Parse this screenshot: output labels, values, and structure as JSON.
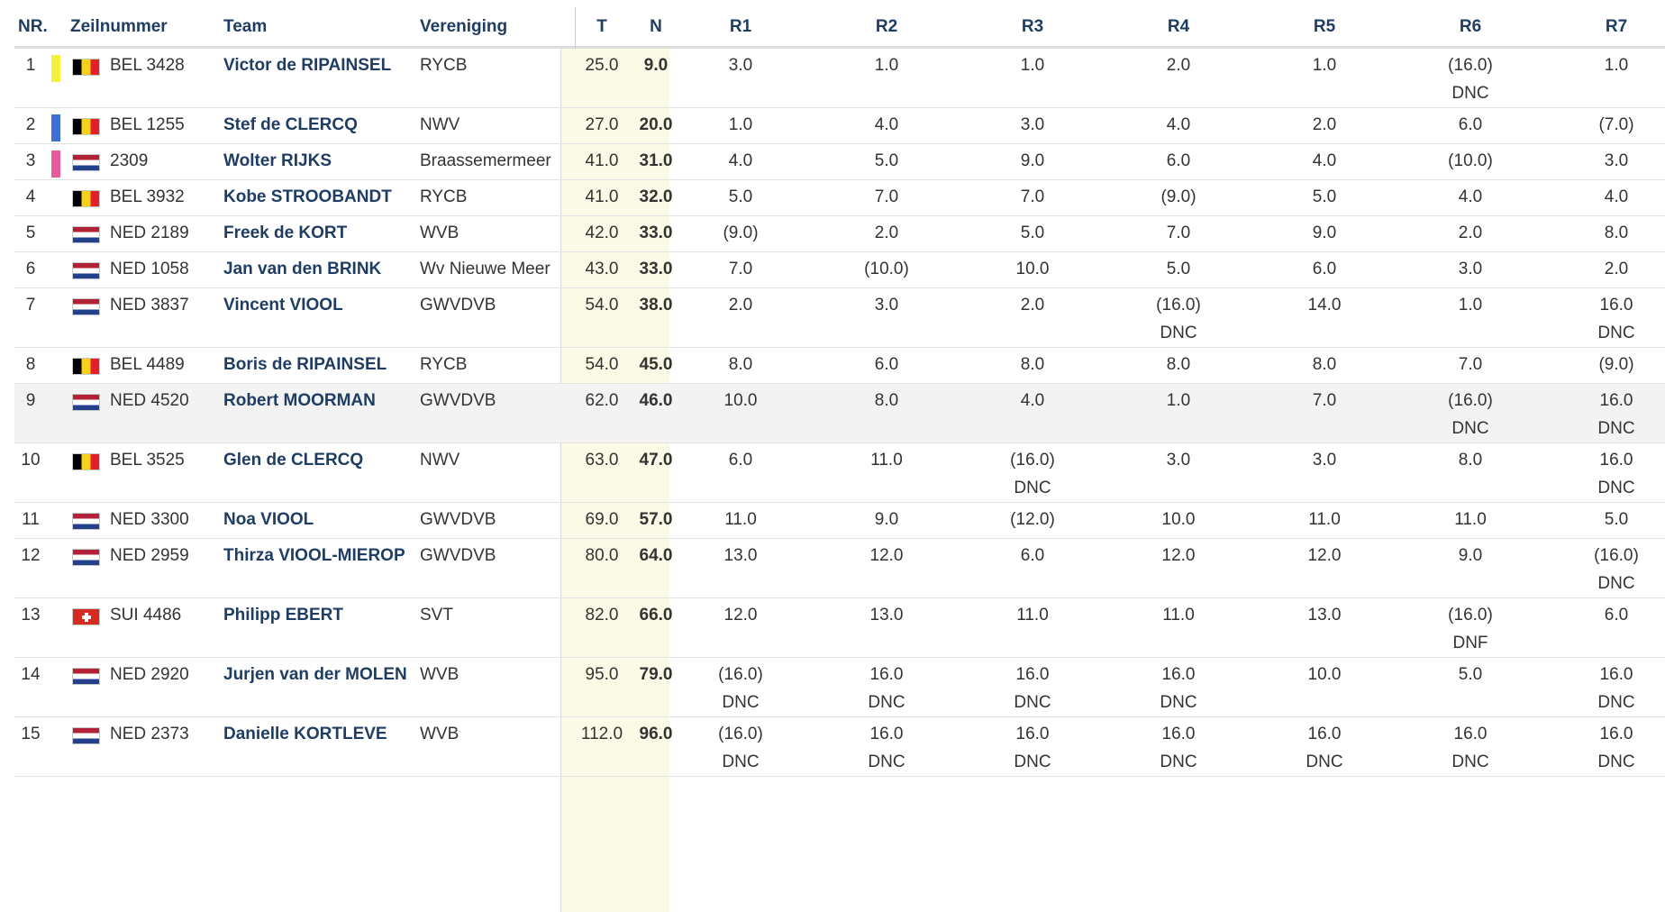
{
  "colors": {
    "header_text": "#1f3d63",
    "team_link": "#1f3d63",
    "tn_band": "#fafae6",
    "highlight_row": "#f3f3f3",
    "marker_yellow": "#f5f03a",
    "marker_blue": "#3f6fd6",
    "marker_pink": "#e95a9c"
  },
  "headers": {
    "nr": "NR.",
    "sail": "Zeilnummer",
    "team": "Team",
    "club": "Vereniging",
    "t": "T",
    "n": "N",
    "races": [
      "R1",
      "R2",
      "R3",
      "R4",
      "R5",
      "R6",
      "R7"
    ]
  },
  "rows": [
    {
      "nr": "1",
      "marker": "yellow",
      "flag": "bel",
      "sail": "BEL 3428",
      "team": "Victor de RIPAINSEL",
      "club": "RYCB",
      "t": "25.0",
      "n": "9.0",
      "races": [
        {
          "score": "3.0",
          "code": ""
        },
        {
          "score": "1.0",
          "code": ""
        },
        {
          "score": "1.0",
          "code": ""
        },
        {
          "score": "2.0",
          "code": ""
        },
        {
          "score": "1.0",
          "code": ""
        },
        {
          "score": "(16.0)",
          "code": "DNC"
        },
        {
          "score": "1.0",
          "code": ""
        }
      ]
    },
    {
      "nr": "2",
      "marker": "blue",
      "flag": "bel",
      "sail": "BEL 1255",
      "team": "Stef de CLERCQ",
      "club": "NWV",
      "t": "27.0",
      "n": "20.0",
      "races": [
        {
          "score": "1.0",
          "code": ""
        },
        {
          "score": "4.0",
          "code": ""
        },
        {
          "score": "3.0",
          "code": ""
        },
        {
          "score": "4.0",
          "code": ""
        },
        {
          "score": "2.0",
          "code": ""
        },
        {
          "score": "6.0",
          "code": ""
        },
        {
          "score": "(7.0)",
          "code": ""
        }
      ]
    },
    {
      "nr": "3",
      "marker": "pink",
      "flag": "ned",
      "sail": "2309",
      "team": "Wolter RIJKS",
      "club": "Braassemermeer",
      "t": "41.0",
      "n": "31.0",
      "races": [
        {
          "score": "4.0",
          "code": ""
        },
        {
          "score": "5.0",
          "code": ""
        },
        {
          "score": "9.0",
          "code": ""
        },
        {
          "score": "6.0",
          "code": ""
        },
        {
          "score": "4.0",
          "code": ""
        },
        {
          "score": "(10.0)",
          "code": ""
        },
        {
          "score": "3.0",
          "code": ""
        }
      ]
    },
    {
      "nr": "4",
      "marker": "",
      "flag": "bel",
      "sail": "BEL 3932",
      "team": "Kobe STROOBANDT",
      "club": "RYCB",
      "t": "41.0",
      "n": "32.0",
      "races": [
        {
          "score": "5.0",
          "code": ""
        },
        {
          "score": "7.0",
          "code": ""
        },
        {
          "score": "7.0",
          "code": ""
        },
        {
          "score": "(9.0)",
          "code": ""
        },
        {
          "score": "5.0",
          "code": ""
        },
        {
          "score": "4.0",
          "code": ""
        },
        {
          "score": "4.0",
          "code": ""
        }
      ]
    },
    {
      "nr": "5",
      "marker": "",
      "flag": "ned",
      "sail": "NED 2189",
      "team": "Freek de KORT",
      "club": "WVB",
      "t": "42.0",
      "n": "33.0",
      "races": [
        {
          "score": "(9.0)",
          "code": ""
        },
        {
          "score": "2.0",
          "code": ""
        },
        {
          "score": "5.0",
          "code": ""
        },
        {
          "score": "7.0",
          "code": ""
        },
        {
          "score": "9.0",
          "code": ""
        },
        {
          "score": "2.0",
          "code": ""
        },
        {
          "score": "8.0",
          "code": ""
        }
      ]
    },
    {
      "nr": "6",
      "marker": "",
      "flag": "ned",
      "sail": "NED 1058",
      "team": "Jan van den BRINK",
      "club": "Wv Nieuwe Meer",
      "t": "43.0",
      "n": "33.0",
      "races": [
        {
          "score": "7.0",
          "code": ""
        },
        {
          "score": "(10.0)",
          "code": ""
        },
        {
          "score": "10.0",
          "code": ""
        },
        {
          "score": "5.0",
          "code": ""
        },
        {
          "score": "6.0",
          "code": ""
        },
        {
          "score": "3.0",
          "code": ""
        },
        {
          "score": "2.0",
          "code": ""
        }
      ]
    },
    {
      "nr": "7",
      "marker": "",
      "flag": "ned",
      "sail": "NED 3837",
      "team": "Vincent VIOOL",
      "club": "GWVDVB",
      "t": "54.0",
      "n": "38.0",
      "races": [
        {
          "score": "2.0",
          "code": ""
        },
        {
          "score": "3.0",
          "code": ""
        },
        {
          "score": "2.0",
          "code": ""
        },
        {
          "score": "(16.0)",
          "code": "DNC"
        },
        {
          "score": "14.0",
          "code": ""
        },
        {
          "score": "1.0",
          "code": ""
        },
        {
          "score": "16.0",
          "code": "DNC"
        }
      ]
    },
    {
      "nr": "8",
      "marker": "",
      "flag": "bel",
      "sail": "BEL 4489",
      "team": "Boris de RIPAINSEL",
      "club": "RYCB",
      "t": "54.0",
      "n": "45.0",
      "races": [
        {
          "score": "8.0",
          "code": ""
        },
        {
          "score": "6.0",
          "code": ""
        },
        {
          "score": "8.0",
          "code": ""
        },
        {
          "score": "8.0",
          "code": ""
        },
        {
          "score": "8.0",
          "code": ""
        },
        {
          "score": "7.0",
          "code": ""
        },
        {
          "score": "(9.0)",
          "code": ""
        }
      ]
    },
    {
      "nr": "9",
      "marker": "",
      "flag": "ned",
      "sail": "NED 4520",
      "team": "Robert MOORMAN",
      "club": "GWVDVB",
      "t": "62.0",
      "n": "46.0",
      "races": [
        {
          "score": "10.0",
          "code": ""
        },
        {
          "score": "8.0",
          "code": ""
        },
        {
          "score": "4.0",
          "code": ""
        },
        {
          "score": "1.0",
          "code": ""
        },
        {
          "score": "7.0",
          "code": ""
        },
        {
          "score": "(16.0)",
          "code": "DNC"
        },
        {
          "score": "16.0",
          "code": "DNC"
        }
      ]
    },
    {
      "nr": "10",
      "marker": "",
      "flag": "bel",
      "sail": "BEL 3525",
      "team": "Glen de CLERCQ",
      "club": "NWV",
      "t": "63.0",
      "n": "47.0",
      "races": [
        {
          "score": "6.0",
          "code": ""
        },
        {
          "score": "11.0",
          "code": ""
        },
        {
          "score": "(16.0)",
          "code": "DNC"
        },
        {
          "score": "3.0",
          "code": ""
        },
        {
          "score": "3.0",
          "code": ""
        },
        {
          "score": "8.0",
          "code": ""
        },
        {
          "score": "16.0",
          "code": "DNC"
        }
      ]
    },
    {
      "nr": "11",
      "marker": "",
      "flag": "ned",
      "sail": "NED 3300",
      "team": "Noa VIOOL",
      "club": "GWVDVB",
      "t": "69.0",
      "n": "57.0",
      "races": [
        {
          "score": "11.0",
          "code": ""
        },
        {
          "score": "9.0",
          "code": ""
        },
        {
          "score": "(12.0)",
          "code": ""
        },
        {
          "score": "10.0",
          "code": ""
        },
        {
          "score": "11.0",
          "code": ""
        },
        {
          "score": "11.0",
          "code": ""
        },
        {
          "score": "5.0",
          "code": ""
        }
      ]
    },
    {
      "nr": "12",
      "marker": "",
      "flag": "ned",
      "sail": "NED 2959",
      "team": "Thirza VIOOL-MIEROP",
      "club": "GWVDVB",
      "t": "80.0",
      "n": "64.0",
      "races": [
        {
          "score": "13.0",
          "code": ""
        },
        {
          "score": "12.0",
          "code": ""
        },
        {
          "score": "6.0",
          "code": ""
        },
        {
          "score": "12.0",
          "code": ""
        },
        {
          "score": "12.0",
          "code": ""
        },
        {
          "score": "9.0",
          "code": ""
        },
        {
          "score": "(16.0)",
          "code": "DNC"
        }
      ]
    },
    {
      "nr": "13",
      "marker": "",
      "flag": "sui",
      "sail": "SUI 4486",
      "team": "Philipp EBERT",
      "club": "SVT",
      "t": "82.0",
      "n": "66.0",
      "races": [
        {
          "score": "12.0",
          "code": ""
        },
        {
          "score": "13.0",
          "code": ""
        },
        {
          "score": "11.0",
          "code": ""
        },
        {
          "score": "11.0",
          "code": ""
        },
        {
          "score": "13.0",
          "code": ""
        },
        {
          "score": "(16.0)",
          "code": "DNF"
        },
        {
          "score": "6.0",
          "code": ""
        }
      ]
    },
    {
      "nr": "14",
      "marker": "",
      "flag": "ned",
      "sail": "NED 2920",
      "team": "Jurjen van der MOLEN",
      "club": "WVB",
      "t": "95.0",
      "n": "79.0",
      "races": [
        {
          "score": "(16.0)",
          "code": "DNC"
        },
        {
          "score": "16.0",
          "code": "DNC"
        },
        {
          "score": "16.0",
          "code": "DNC"
        },
        {
          "score": "16.0",
          "code": "DNC"
        },
        {
          "score": "10.0",
          "code": ""
        },
        {
          "score": "5.0",
          "code": ""
        },
        {
          "score": "16.0",
          "code": "DNC"
        }
      ]
    },
    {
      "nr": "15",
      "marker": "",
      "flag": "ned",
      "sail": "NED 2373",
      "team": "Danielle KORTLEVE",
      "club": "WVB",
      "t": "112.0",
      "n": "96.0",
      "races": [
        {
          "score": "(16.0)",
          "code": "DNC"
        },
        {
          "score": "16.0",
          "code": "DNC"
        },
        {
          "score": "16.0",
          "code": "DNC"
        },
        {
          "score": "16.0",
          "code": "DNC"
        },
        {
          "score": "16.0",
          "code": "DNC"
        },
        {
          "score": "16.0",
          "code": "DNC"
        },
        {
          "score": "16.0",
          "code": "DNC"
        }
      ]
    }
  ],
  "highlight_row_index": 8
}
